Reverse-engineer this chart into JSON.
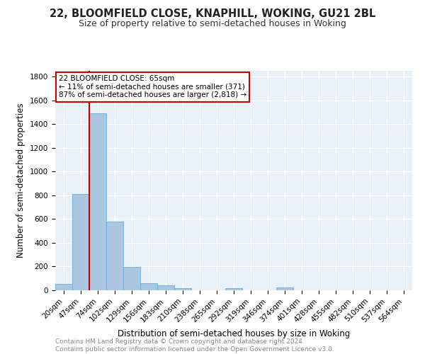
{
  "title1": "22, BLOOMFIELD CLOSE, KNAPHILL, WOKING, GU21 2BL",
  "title2": "Size of property relative to semi-detached houses in Woking",
  "xlabel": "Distribution of semi-detached houses by size in Woking",
  "ylabel": "Number of semi-detached properties",
  "footer1": "Contains HM Land Registry data © Crown copyright and database right 2024.",
  "footer2": "Contains public sector information licensed under the Open Government Licence v3.0.",
  "categories": [
    "20sqm",
    "47sqm",
    "74sqm",
    "102sqm",
    "129sqm",
    "156sqm",
    "183sqm",
    "210sqm",
    "238sqm",
    "265sqm",
    "292sqm",
    "319sqm",
    "346sqm",
    "374sqm",
    "401sqm",
    "428sqm",
    "455sqm",
    "482sqm",
    "510sqm",
    "537sqm",
    "564sqm"
  ],
  "values": [
    55,
    810,
    1490,
    580,
    195,
    60,
    40,
    18,
    0,
    0,
    15,
    0,
    0,
    22,
    0,
    0,
    0,
    0,
    0,
    0,
    0
  ],
  "bar_color": "#adc6e0",
  "bar_edge_color": "#6baed6",
  "vline_color": "#cc0000",
  "vline_x_index": 1.5,
  "annotation_text": "22 BLOOMFIELD CLOSE: 65sqm\n← 11% of semi-detached houses are smaller (371)\n87% of semi-detached houses are larger (2,818) →",
  "annotation_box_color": "#ffffff",
  "annotation_box_edge": "#cc0000",
  "ylim": [
    0,
    1850
  ],
  "yticks": [
    0,
    200,
    400,
    600,
    800,
    1000,
    1200,
    1400,
    1600,
    1800
  ],
  "bg_color": "#e8f0f8",
  "grid_color": "#ffffff",
  "title1_fontsize": 10.5,
  "title2_fontsize": 9,
  "axis_label_fontsize": 8.5,
  "tick_fontsize": 7.5,
  "footer_fontsize": 6.5
}
